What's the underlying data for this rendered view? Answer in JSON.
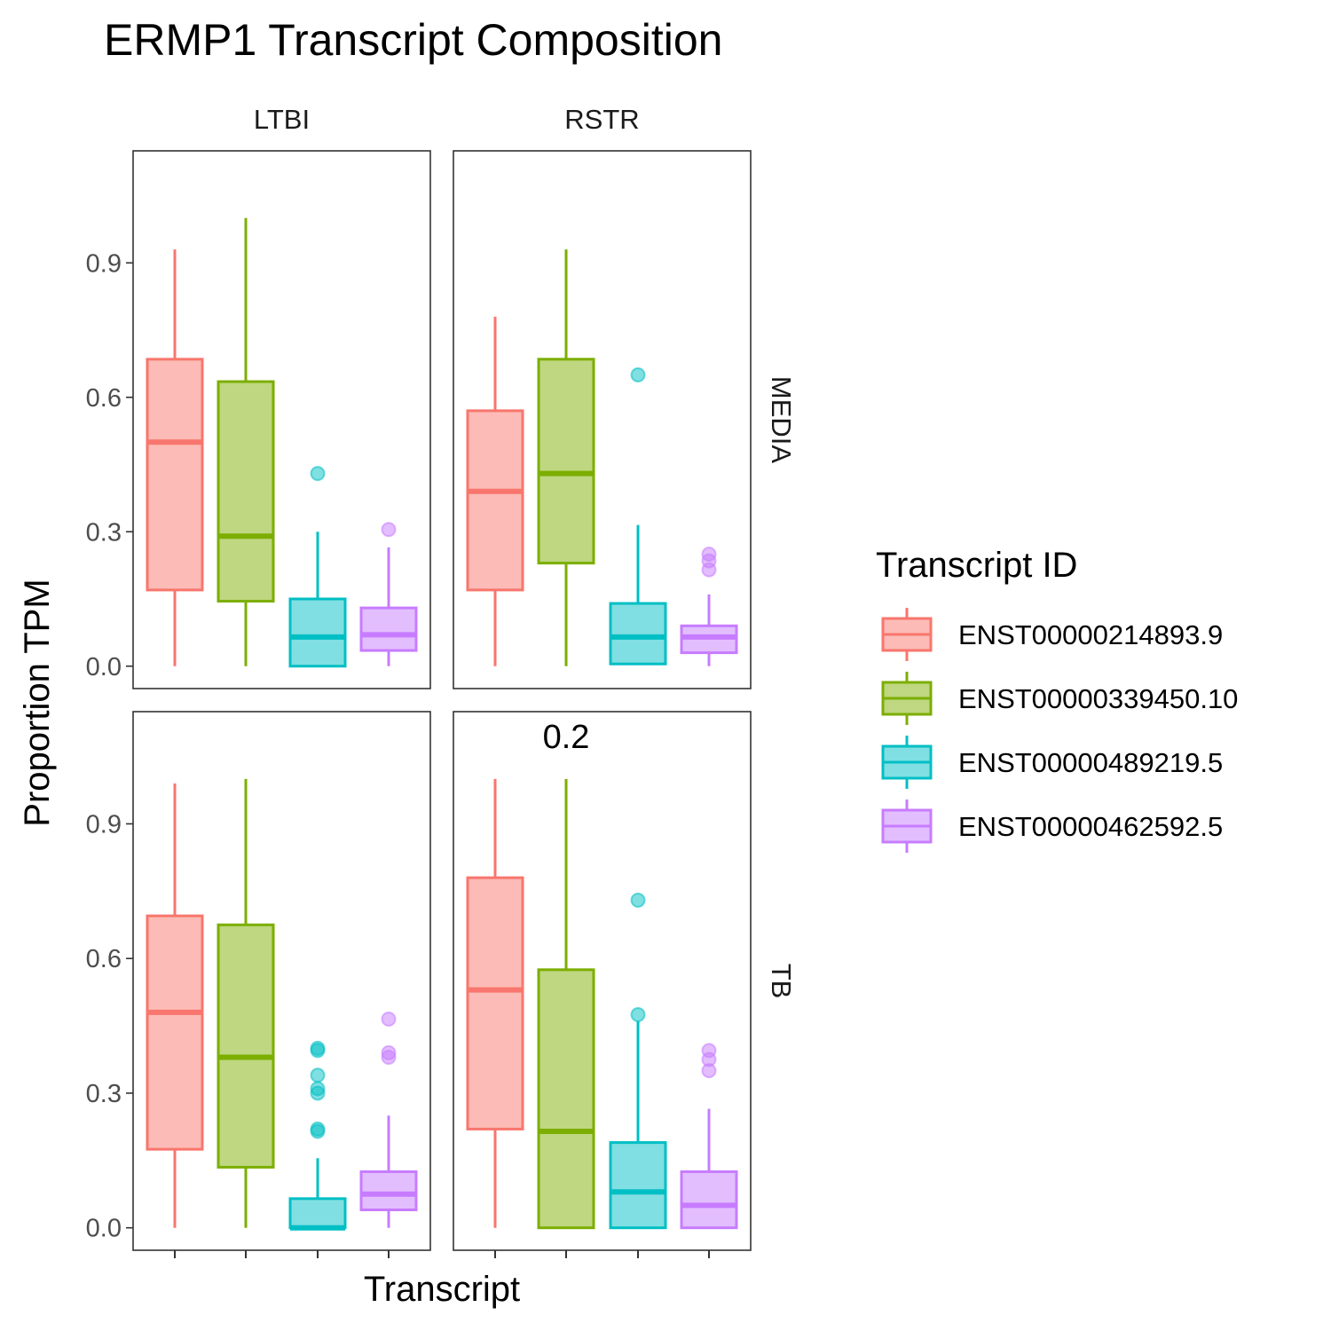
{
  "chart_data": {
    "type": "boxplot",
    "title": "ERMP1 Transcript Composition",
    "xlabel": "Transcript",
    "ylabel": "Proportion TPM",
    "ylim": [
      -0.05,
      1.15
    ],
    "y_ticks": [
      "0.0",
      "0.3",
      "0.6",
      "0.9"
    ],
    "y_tick_values": [
      0.0,
      0.3,
      0.6,
      0.9
    ],
    "grid": false,
    "legend_position": "right",
    "legend_title": "Transcript ID",
    "col_facets": [
      "LTBI",
      "RSTR"
    ],
    "row_facets": [
      "MEDIA",
      "TB"
    ],
    "series": [
      {
        "name": "ENST00000214893.9",
        "color": "#F8766D"
      },
      {
        "name": "ENST00000339450.10",
        "color": "#7CAE00"
      },
      {
        "name": "ENST00000489219.5",
        "color": "#00BFC4"
      },
      {
        "name": "ENST00000462592.5",
        "color": "#C77CFF"
      }
    ],
    "annotations": [
      {
        "panel": "TB/RSTR",
        "text": "0.2"
      }
    ],
    "panels": [
      {
        "row": "MEDIA",
        "col": "LTBI",
        "boxes": [
          {
            "series": 0,
            "whisker_low": 0.0,
            "q1": 0.17,
            "median": 0.5,
            "q3": 0.685,
            "whisker_high": 0.93,
            "outliers": []
          },
          {
            "series": 1,
            "whisker_low": 0.0,
            "q1": 0.145,
            "median": 0.29,
            "q3": 0.635,
            "whisker_high": 1.0,
            "outliers": []
          },
          {
            "series": 2,
            "whisker_low": 0.0,
            "q1": 0.0,
            "median": 0.065,
            "q3": 0.15,
            "whisker_high": 0.3,
            "outliers": [
              0.43
            ]
          },
          {
            "series": 3,
            "whisker_low": 0.0,
            "q1": 0.035,
            "median": 0.07,
            "q3": 0.13,
            "whisker_high": 0.265,
            "outliers": [
              0.305
            ]
          }
        ]
      },
      {
        "row": "MEDIA",
        "col": "RSTR",
        "boxes": [
          {
            "series": 0,
            "whisker_low": 0.0,
            "q1": 0.17,
            "median": 0.39,
            "q3": 0.57,
            "whisker_high": 0.78,
            "outliers": []
          },
          {
            "series": 1,
            "whisker_low": 0.0,
            "q1": 0.23,
            "median": 0.43,
            "q3": 0.685,
            "whisker_high": 0.93,
            "outliers": []
          },
          {
            "series": 2,
            "whisker_low": 0.005,
            "q1": 0.005,
            "median": 0.065,
            "q3": 0.14,
            "whisker_high": 0.315,
            "outliers": [
              0.65
            ]
          },
          {
            "series": 3,
            "whisker_low": 0.0,
            "q1": 0.03,
            "median": 0.065,
            "q3": 0.09,
            "whisker_high": 0.16,
            "outliers": [
              0.215,
              0.235,
              0.25
            ]
          }
        ]
      },
      {
        "row": "TB",
        "col": "LTBI",
        "boxes": [
          {
            "series": 0,
            "whisker_low": 0.0,
            "q1": 0.175,
            "median": 0.48,
            "q3": 0.695,
            "whisker_high": 0.99,
            "outliers": []
          },
          {
            "series": 1,
            "whisker_low": 0.0,
            "q1": 0.135,
            "median": 0.38,
            "q3": 0.675,
            "whisker_high": 1.0,
            "outliers": []
          },
          {
            "series": 2,
            "whisker_low": 0.0,
            "q1": 0.0,
            "median": 0.0,
            "q3": 0.065,
            "whisker_high": 0.155,
            "outliers": [
              0.215,
              0.22,
              0.3,
              0.31,
              0.34,
              0.395,
              0.4
            ]
          },
          {
            "series": 3,
            "whisker_low": 0.0,
            "q1": 0.04,
            "median": 0.075,
            "q3": 0.125,
            "whisker_high": 0.25,
            "outliers": [
              0.38,
              0.39,
              0.465
            ]
          }
        ]
      },
      {
        "row": "TB",
        "col": "RSTR",
        "boxes": [
          {
            "series": 0,
            "whisker_low": 0.0,
            "q1": 0.22,
            "median": 0.53,
            "q3": 0.78,
            "whisker_high": 1.0,
            "outliers": []
          },
          {
            "series": 1,
            "whisker_low": 0.0,
            "q1": 0.0,
            "median": 0.215,
            "q3": 0.575,
            "whisker_high": 1.0,
            "outliers": []
          },
          {
            "series": 2,
            "whisker_low": 0.0,
            "q1": 0.0,
            "median": 0.08,
            "q3": 0.19,
            "whisker_high": 0.46,
            "outliers": [
              0.475,
              0.73
            ]
          },
          {
            "series": 3,
            "whisker_low": 0.0,
            "q1": 0.0,
            "median": 0.05,
            "q3": 0.125,
            "whisker_high": 0.265,
            "outliers": [
              0.35,
              0.375,
              0.395
            ]
          }
        ]
      }
    ]
  }
}
